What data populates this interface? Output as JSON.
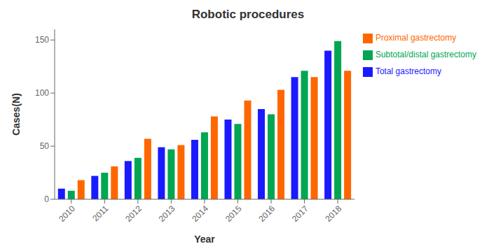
{
  "chart_data": {
    "type": "bar",
    "title": "Robotic procedures",
    "xlabel": "Year",
    "ylabel": "Cases(N)",
    "categories": [
      "2010",
      "2011",
      "2012",
      "2013",
      "2014",
      "2015",
      "2016",
      "2017",
      "2018"
    ],
    "series": [
      {
        "name": "Total gastrectomy",
        "color": "#1a1aff",
        "values": [
          10,
          22,
          36,
          49,
          56,
          75,
          85,
          115,
          140
        ]
      },
      {
        "name": "Subtotal/distal gastrectomy",
        "color": "#00a651",
        "values": [
          8,
          25,
          39,
          47,
          63,
          71,
          80,
          121,
          149
        ]
      },
      {
        "name": "Proximal gastrectomy",
        "color": "#ff6600",
        "values": [
          18,
          31,
          57,
          51,
          78,
          93,
          103,
          115,
          121
        ]
      }
    ],
    "ylim": [
      0,
      160
    ],
    "yticks": [
      0,
      50,
      100,
      150
    ],
    "grid": false,
    "legend": "right"
  }
}
